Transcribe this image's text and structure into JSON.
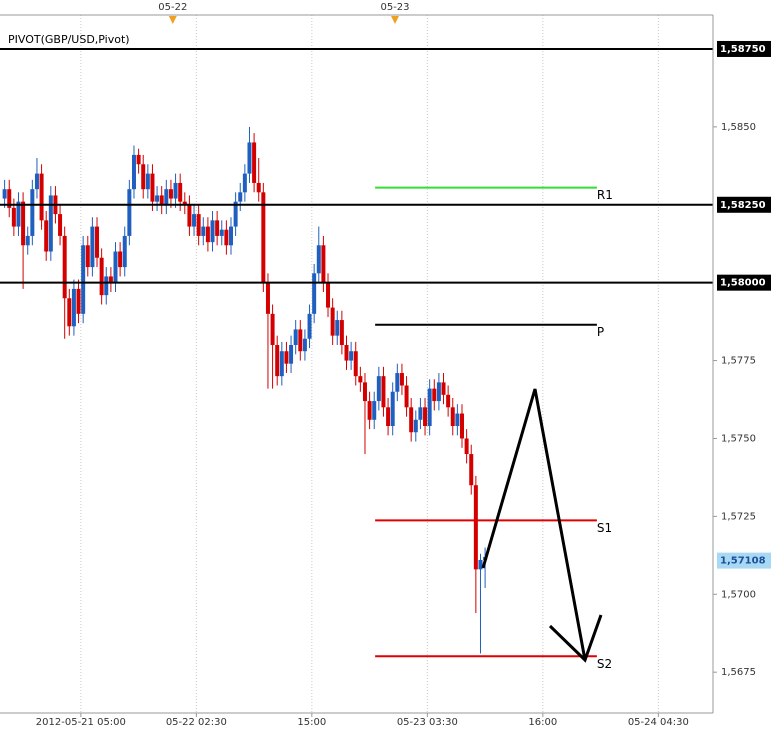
{
  "chart_data": {
    "type": "candlestick",
    "indicator_label": "PIVOT(GBP/USD,Pivot)",
    "up_color": "#1f5fbf",
    "down_color": "#d40000",
    "xlim": [
      0,
      154.33
    ],
    "ylim": [
      1.56619,
      1.58859
    ],
    "grid": true,
    "xticks": [
      {
        "value": 17.5,
        "label": "2012-05-21 05:00"
      },
      {
        "value": 42.5,
        "label": "05-22 02:30"
      },
      {
        "value": 67.5,
        "label": "15:00"
      },
      {
        "value": 92.5,
        "label": "05-23 03:30"
      },
      {
        "value": 117.5,
        "label": "16:00"
      },
      {
        "value": 142.5,
        "label": "05-24 04:30"
      }
    ],
    "yticks": [
      {
        "value": 1.585,
        "label": "1,5850"
      },
      {
        "value": 1.5775,
        "label": "1,5775"
      },
      {
        "value": 1.575,
        "label": "1,5750"
      },
      {
        "value": 1.5725,
        "label": "1,5725"
      },
      {
        "value": 1.57,
        "label": "1,5700"
      },
      {
        "value": 1.5675,
        "label": "1,5675"
      }
    ],
    "day_markers": [
      {
        "x": 37.4,
        "label": "05-22"
      },
      {
        "x": 85.5,
        "label": "05-23"
      }
    ],
    "horizontal_lines": [
      {
        "value": 1.5875,
        "label": "1,58750"
      },
      {
        "value": 1.5825,
        "label": "1,58250"
      },
      {
        "value": 1.58,
        "label": "1,58000"
      }
    ],
    "current_price": {
      "value": 1.57108,
      "label": "1,57108"
    },
    "pivot_levels": [
      {
        "name": "R1",
        "value": 1.58305,
        "color": "#33dd33",
        "x_start": 81.2,
        "x_end": 129.2
      },
      {
        "name": "P",
        "value": 1.57865,
        "color": "#000000",
        "x_start": 81.2,
        "x_end": 129.2
      },
      {
        "name": "S1",
        "value": 1.57237,
        "color": "#e00000",
        "x_start": 81.2,
        "x_end": 129.2
      },
      {
        "name": "S2",
        "value": 1.56801,
        "color": "#e00000",
        "x_start": 81.2,
        "x_end": 129.2
      }
    ],
    "x": [
      1,
      2,
      3,
      4,
      5,
      6,
      7,
      8,
      9,
      10,
      11,
      12,
      13,
      14,
      15,
      16,
      17,
      18,
      19,
      20,
      21,
      22,
      23,
      24,
      25,
      26,
      27,
      28,
      29,
      30,
      31,
      32,
      33,
      34,
      35,
      36,
      37,
      38,
      39,
      40,
      41,
      42,
      43,
      44,
      45,
      46,
      47,
      48,
      49,
      50,
      51,
      52,
      53,
      54,
      55,
      56,
      57,
      58,
      59,
      60,
      61,
      62,
      63,
      64,
      65,
      66,
      67,
      68,
      69,
      70,
      71,
      72,
      73,
      74,
      75,
      76,
      77,
      78,
      79,
      80,
      81,
      82,
      83,
      84,
      85,
      86,
      87,
      88,
      89,
      90,
      91,
      92,
      93,
      94,
      95,
      96,
      97,
      98,
      99,
      100,
      101,
      102,
      103,
      104,
      105
    ],
    "open": [
      1.5827,
      1.583,
      1.5824,
      1.5818,
      1.5826,
      1.5812,
      1.5815,
      1.583,
      1.5835,
      1.582,
      1.581,
      1.5828,
      1.5822,
      1.5815,
      1.5795,
      1.5786,
      1.5798,
      1.579,
      1.5812,
      1.5805,
      1.5818,
      1.5808,
      1.5796,
      1.5802,
      1.58,
      1.581,
      1.5805,
      1.5815,
      1.583,
      1.5841,
      1.5838,
      1.583,
      1.5835,
      1.5826,
      1.5828,
      1.5825,
      1.583,
      1.5827,
      1.5832,
      1.5826,
      1.5825,
      1.5818,
      1.5822,
      1.5815,
      1.5818,
      1.5813,
      1.582,
      1.5815,
      1.5817,
      1.5812,
      1.5818,
      1.5826,
      1.5829,
      1.5835,
      1.5845,
      1.5832,
      1.5829,
      1.58,
      1.579,
      1.578,
      1.577,
      1.5778,
      1.5774,
      1.578,
      1.5785,
      1.5778,
      1.5782,
      1.579,
      1.5803,
      1.5812,
      1.58,
      1.5792,
      1.5783,
      1.5788,
      1.578,
      1.5775,
      1.5778,
      1.577,
      1.5768,
      1.5762,
      1.5756,
      1.5762,
      1.577,
      1.576,
      1.5754,
      1.5765,
      1.5771,
      1.5767,
      1.576,
      1.5752,
      1.5756,
      1.576,
      1.5754,
      1.5766,
      1.5762,
      1.5768,
      1.5764,
      1.576,
      1.5754,
      1.5758,
      1.575,
      1.5745,
      1.5735,
      1.5708,
      1.5711
    ],
    "high": [
      1.5833,
      1.5833,
      1.5827,
      1.5829,
      1.5829,
      1.5818,
      1.5833,
      1.584,
      1.5838,
      1.5823,
      1.5831,
      1.5831,
      1.5825,
      1.5818,
      1.5798,
      1.5801,
      1.5801,
      1.5815,
      1.5815,
      1.5821,
      1.5821,
      1.5811,
      1.5805,
      1.5805,
      1.5813,
      1.5813,
      1.5818,
      1.5833,
      1.5844,
      1.5843,
      1.5841,
      1.5838,
      1.5838,
      1.5831,
      1.5831,
      1.5833,
      1.5833,
      1.5835,
      1.5835,
      1.5829,
      1.5828,
      1.5825,
      1.5825,
      1.5821,
      1.5821,
      1.5823,
      1.5823,
      1.582,
      1.582,
      1.5821,
      1.5829,
      1.5832,
      1.5838,
      1.585,
      1.5848,
      1.584,
      1.5832,
      1.5803,
      1.5793,
      1.5783,
      1.5781,
      1.5781,
      1.5783,
      1.5788,
      1.5788,
      1.5785,
      1.5793,
      1.5806,
      1.5818,
      1.5815,
      1.5803,
      1.5795,
      1.5791,
      1.5791,
      1.5783,
      1.5781,
      1.5781,
      1.5773,
      1.5771,
      1.5765,
      1.5765,
      1.5773,
      1.5773,
      1.5763,
      1.5768,
      1.5774,
      1.5774,
      1.577,
      1.5763,
      1.5759,
      1.5763,
      1.5763,
      1.5769,
      1.5769,
      1.5771,
      1.5771,
      1.5767,
      1.5763,
      1.5761,
      1.5761,
      1.5753,
      1.5748,
      1.5738,
      1.5713,
      1.5715
    ],
    "low": [
      1.5824,
      1.5821,
      1.5815,
      1.5815,
      1.5798,
      1.5809,
      1.5812,
      1.5827,
      1.5817,
      1.5807,
      1.5807,
      1.5819,
      1.5812,
      1.5782,
      1.5783,
      1.5783,
      1.5787,
      1.5787,
      1.5802,
      1.5802,
      1.5805,
      1.5793,
      1.5793,
      1.5797,
      1.5797,
      1.5802,
      1.5802,
      1.5812,
      1.5827,
      1.5835,
      1.5827,
      1.5827,
      1.5823,
      1.5823,
      1.5822,
      1.5822,
      1.5824,
      1.5824,
      1.5823,
      1.5822,
      1.5815,
      1.5815,
      1.5812,
      1.5812,
      1.581,
      1.581,
      1.5812,
      1.5812,
      1.5809,
      1.5809,
      1.5815,
      1.5823,
      1.5826,
      1.5832,
      1.5829,
      1.5826,
      1.5797,
      1.5766,
      1.5766,
      1.5767,
      1.5767,
      1.5771,
      1.5771,
      1.5777,
      1.5775,
      1.5775,
      1.5779,
      1.5787,
      1.58,
      1.5797,
      1.5789,
      1.578,
      1.578,
      1.5777,
      1.5772,
      1.5772,
      1.5767,
      1.5765,
      1.5745,
      1.5753,
      1.5753,
      1.5759,
      1.5757,
      1.5751,
      1.5751,
      1.5762,
      1.5764,
      1.5757,
      1.5749,
      1.5749,
      1.5753,
      1.5751,
      1.5751,
      1.5759,
      1.5759,
      1.5761,
      1.5757,
      1.5751,
      1.5751,
      1.5747,
      1.5742,
      1.5732,
      1.5694,
      1.5681,
      1.5702
    ],
    "close": [
      1.583,
      1.5824,
      1.5818,
      1.5826,
      1.5812,
      1.5815,
      1.583,
      1.5835,
      1.582,
      1.581,
      1.5828,
      1.5822,
      1.5815,
      1.5795,
      1.5786,
      1.5798,
      1.579,
      1.5812,
      1.5805,
      1.5818,
      1.5808,
      1.5796,
      1.5802,
      1.58,
      1.581,
      1.5805,
      1.5815,
      1.583,
      1.5841,
      1.5838,
      1.583,
      1.5835,
      1.5826,
      1.5828,
      1.5825,
      1.583,
      1.5827,
      1.5832,
      1.5826,
      1.5825,
      1.5818,
      1.5822,
      1.5815,
      1.5818,
      1.5813,
      1.582,
      1.5815,
      1.5817,
      1.5812,
      1.5818,
      1.5826,
      1.5829,
      1.5835,
      1.5845,
      1.5832,
      1.5829,
      1.58,
      1.579,
      1.578,
      1.577,
      1.5778,
      1.5774,
      1.578,
      1.5785,
      1.5778,
      1.5782,
      1.579,
      1.5803,
      1.5812,
      1.58,
      1.5792,
      1.5783,
      1.5788,
      1.578,
      1.5775,
      1.5778,
      1.577,
      1.5768,
      1.5762,
      1.5756,
      1.5762,
      1.577,
      1.576,
      1.5754,
      1.5765,
      1.5771,
      1.5767,
      1.576,
      1.5752,
      1.5756,
      1.576,
      1.5754,
      1.5766,
      1.5762,
      1.5768,
      1.5764,
      1.576,
      1.5754,
      1.5758,
      1.575,
      1.5745,
      1.5735,
      1.5708,
      1.5711,
      1.5712
    ]
  }
}
